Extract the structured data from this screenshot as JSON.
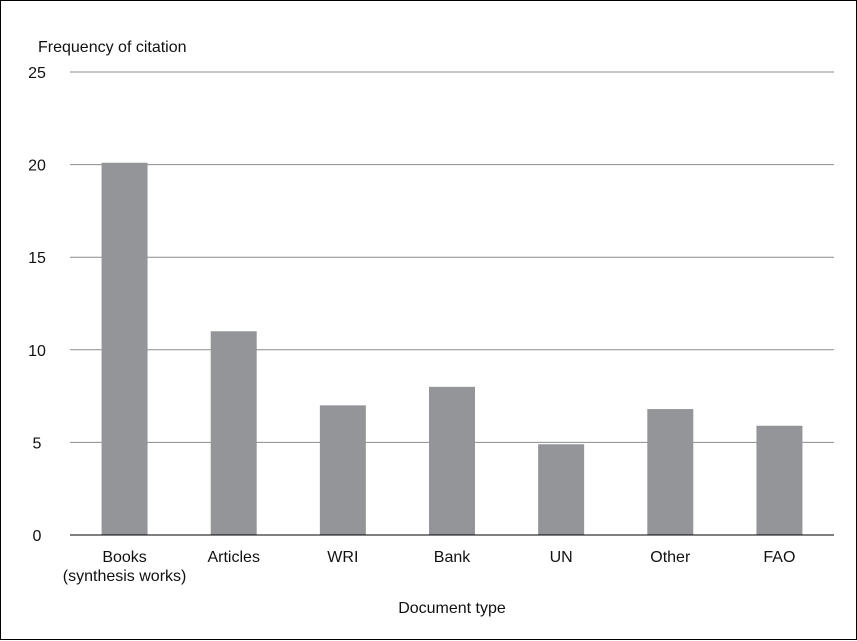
{
  "chart_data": {
    "type": "bar",
    "title": "",
    "ylabel": "Frequency of citation",
    "xlabel": "Document type",
    "categories": [
      [
        "Books",
        "(synthesis works)"
      ],
      [
        "Articles"
      ],
      [
        "WRI"
      ],
      [
        "Bank"
      ],
      [
        "UN"
      ],
      [
        "Other"
      ],
      [
        "FAO"
      ]
    ],
    "values": [
      20.1,
      11,
      7,
      8,
      4.9,
      6.8,
      5.9
    ],
    "ylim": [
      0,
      25
    ],
    "yticks": [
      0,
      5,
      10,
      15,
      20,
      25
    ],
    "grid": true,
    "legend": "none",
    "colors": {
      "bar": "#939598",
      "grid": "#8c8c8c",
      "axis": "#000000"
    }
  }
}
